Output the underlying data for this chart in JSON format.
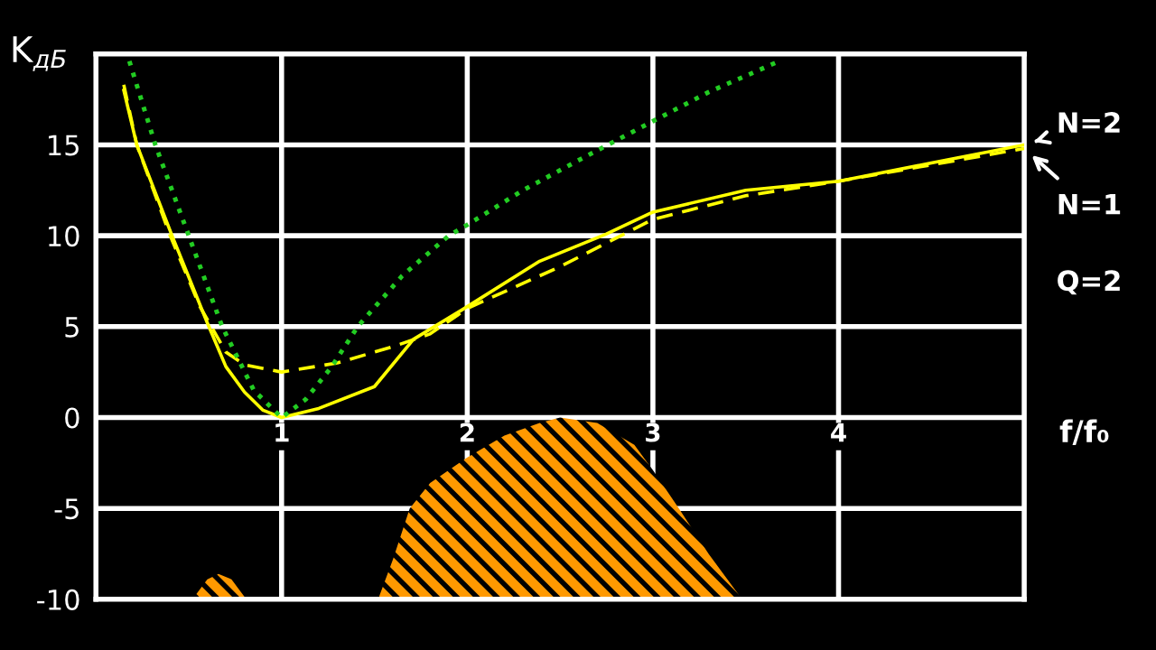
{
  "chart_data": {
    "type": "line",
    "ylabel": "K$_{дБ}$",
    "xlabel": "f/f₀",
    "xlim": [
      0,
      5
    ],
    "ylim": [
      -10,
      20
    ],
    "xticks": [
      1,
      2,
      3,
      4
    ],
    "yticks": [
      -10,
      -5,
      0,
      5,
      10,
      15
    ],
    "grid": true,
    "marker": "none",
    "series": [
      {
        "name": "N=2",
        "color": "#ffff00",
        "line_style": "solid",
        "x": [
          0.15,
          0.22,
          0.41,
          0.6,
          0.7,
          0.8,
          0.9,
          1.0,
          1.2,
          1.5,
          1.71,
          2.0,
          2.39,
          2.75,
          3.0,
          3.5,
          4.0,
          4.5,
          5.0
        ],
        "values": [
          18.0,
          15,
          10,
          5.2,
          2.8,
          1.4,
          0.4,
          0,
          0.5,
          1.7,
          4.3,
          6.1,
          8.6,
          10.1,
          11.3,
          12.5,
          13.0,
          14.0,
          15.0
        ]
      },
      {
        "name": "N=1",
        "color": "#ffff00",
        "line_style": "dashed",
        "x": [
          0.15,
          0.22,
          0.4,
          0.56,
          0.7,
          0.8,
          1.0,
          1.3,
          1.6,
          1.8,
          2.0,
          2.5,
          3.0,
          3.5,
          4.0,
          4.5,
          5.0
        ],
        "values": [
          18.3,
          15,
          10,
          6.1,
          3.6,
          2.9,
          2.5,
          3.0,
          3.9,
          4.6,
          6.0,
          8.3,
          10.9,
          12.2,
          13.0,
          13.9,
          14.8
        ]
      },
      {
        "color": "#22cc22",
        "line_style": "dotted",
        "x": [
          0.18,
          0.32,
          0.5,
          0.68,
          0.85,
          1.0,
          1.13,
          1.27,
          1.41,
          1.65,
          1.9,
          2.0,
          2.3,
          2.59,
          3.0,
          3.3,
          3.68
        ],
        "values": [
          19.6,
          15,
          10,
          5,
          1.5,
          0,
          1.0,
          2.8,
          5,
          7.8,
          10,
          10.6,
          12.5,
          14.1,
          16.3,
          17.9,
          19.6
        ]
      },
      {
        "type": "area",
        "color": "#ff9900",
        "x": [
          0.52,
          0.6,
          0.66,
          0.73,
          0.81
        ],
        "values": [
          -10,
          -8.9,
          -8.6,
          -8.9,
          -10
        ]
      },
      {
        "type": "area",
        "color": "#ff9900",
        "x": [
          1.52,
          1.6,
          1.69,
          1.8,
          2.0,
          2.2,
          2.39,
          2.5,
          2.7,
          2.9,
          3.0,
          3.14,
          3.3,
          3.48
        ],
        "values": [
          -10,
          -7.8,
          -5,
          -3.6,
          -2.2,
          -1.0,
          -0.3,
          0,
          -0.3,
          -1.5,
          -2.9,
          -5,
          -7.5,
          -10
        ]
      }
    ],
    "annotations": [
      "Q=2"
    ]
  }
}
